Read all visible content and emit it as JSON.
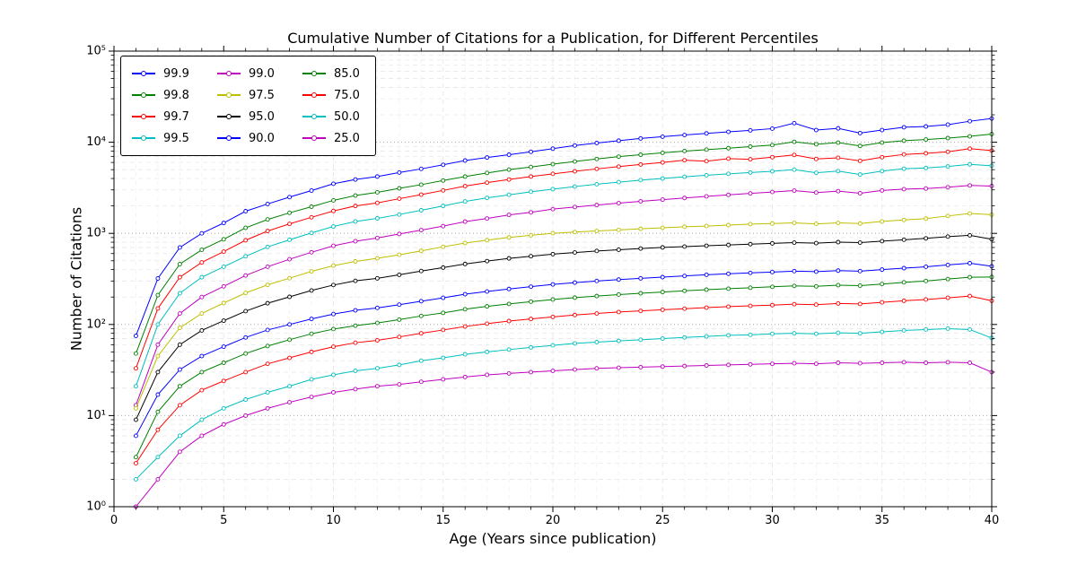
{
  "figure": {
    "background": "#ffffff",
    "frame_color": "#000000",
    "grid_major_color": "#aaaaaa",
    "grid_minor_color": "#e8e8e8"
  },
  "chart_data": {
    "type": "line",
    "title": "Cumulative Number of Citations for a Publication, for Different Percentiles",
    "xlabel": "Age (Years since publication)",
    "ylabel": "Number of Citations",
    "xlim": [
      0,
      40
    ],
    "ylim": [
      1,
      100000
    ],
    "yscale": "log",
    "grid": "both",
    "legend_position": "upper left",
    "legend_columns": 3,
    "x_major_ticks": [
      0,
      5,
      10,
      15,
      20,
      25,
      30,
      35,
      40
    ],
    "y_ticks": [
      {
        "exp": 0,
        "label": "10⁰"
      },
      {
        "exp": 1,
        "label": "10¹"
      },
      {
        "exp": 2,
        "label": "10²"
      },
      {
        "exp": 3,
        "label": "10³"
      },
      {
        "exp": 4,
        "label": "10⁴"
      },
      {
        "exp": 5,
        "label": "10⁵"
      }
    ],
    "x": [
      1,
      2,
      3,
      4,
      5,
      6,
      7,
      8,
      9,
      10,
      11,
      12,
      13,
      14,
      15,
      16,
      17,
      18,
      19,
      20,
      21,
      22,
      23,
      24,
      25,
      26,
      27,
      28,
      29,
      30,
      31,
      32,
      33,
      34,
      35,
      36,
      37,
      38,
      39,
      40
    ],
    "series": [
      {
        "name": "99.9",
        "color": "#0000ff",
        "values": [
          75,
          320,
          700,
          1000,
          1300,
          1750,
          2100,
          2500,
          2950,
          3500,
          3900,
          4200,
          4650,
          5100,
          5650,
          6300,
          6800,
          7300,
          7850,
          8500,
          9200,
          9800,
          10400,
          11000,
          11500,
          12000,
          12500,
          13000,
          13500,
          14100,
          16200,
          13600,
          14200,
          12600,
          13600,
          14600,
          14900,
          15600,
          17000,
          18200
        ]
      },
      {
        "name": "99.8",
        "color": "#008000",
        "values": [
          48,
          210,
          460,
          660,
          860,
          1150,
          1420,
          1680,
          1960,
          2300,
          2600,
          2820,
          3120,
          3420,
          3800,
          4200,
          4600,
          5000,
          5350,
          5750,
          6150,
          6550,
          6950,
          7300,
          7650,
          8000,
          8300,
          8600,
          8950,
          9300,
          10100,
          9500,
          9900,
          9100,
          9900,
          10400,
          10700,
          11100,
          11600,
          12300
        ]
      },
      {
        "name": "99.7",
        "color": "#ff0000",
        "values": [
          33,
          150,
          330,
          480,
          630,
          840,
          1060,
          1270,
          1500,
          1760,
          2000,
          2160,
          2400,
          2660,
          2960,
          3300,
          3600,
          3900,
          4200,
          4500,
          4800,
          5100,
          5400,
          5700,
          6000,
          6350,
          6200,
          6600,
          6500,
          6850,
          7250,
          6550,
          6750,
          6250,
          6850,
          7350,
          7550,
          7850,
          8500,
          8100
        ]
      },
      {
        "name": "99.5",
        "color": "#00bfbf",
        "values": [
          21,
          100,
          220,
          330,
          430,
          560,
          710,
          850,
          1010,
          1190,
          1350,
          1460,
          1610,
          1790,
          2000,
          2240,
          2450,
          2650,
          2860,
          3060,
          3260,
          3460,
          3650,
          3840,
          4000,
          4180,
          4340,
          4500,
          4650,
          4800,
          5000,
          4620,
          4820,
          4420,
          4820,
          5120,
          5220,
          5420,
          5720,
          5520
        ]
      },
      {
        "name": "99.0",
        "color": "#bf00bf",
        "values": [
          13,
          60,
          132,
          200,
          262,
          345,
          430,
          520,
          620,
          730,
          820,
          890,
          985,
          1085,
          1200,
          1345,
          1455,
          1595,
          1700,
          1845,
          1945,
          2045,
          2145,
          2245,
          2345,
          2445,
          2545,
          2645,
          2745,
          2845,
          2945,
          2805,
          2905,
          2755,
          2955,
          3055,
          3105,
          3205,
          3355,
          3305
        ]
      },
      {
        "name": "97.5",
        "color": "#bfbf00",
        "values": [
          12,
          45,
          92,
          132,
          172,
          222,
          272,
          322,
          382,
          442,
          492,
          532,
          582,
          642,
          712,
          782,
          842,
          902,
          952,
          1002,
          1032,
          1062,
          1092,
          1122,
          1152,
          1182,
          1202,
          1232,
          1262,
          1282,
          1302,
          1272,
          1302,
          1282,
          1352,
          1402,
          1452,
          1552,
          1652,
          1602
        ]
      },
      {
        "name": "95.0",
        "color": "#000000",
        "values": [
          9,
          30,
          60,
          86,
          110,
          140,
          171,
          201,
          236,
          271,
          301,
          321,
          351,
          386,
          421,
          461,
          496,
          531,
          561,
          591,
          616,
          641,
          661,
          681,
          701,
          716,
          731,
          746,
          761,
          776,
          791,
          781,
          801,
          791,
          821,
          851,
          881,
          921,
          951,
          861
        ]
      },
      {
        "name": "90.0",
        "color": "#0000ff",
        "values": [
          6,
          17,
          32,
          45,
          57,
          72,
          87,
          100,
          115,
          130,
          143,
          152,
          165,
          180,
          196,
          215,
          230,
          245,
          260,
          275,
          288,
          300,
          311,
          321,
          331,
          341,
          351,
          360,
          368,
          376,
          385,
          380,
          390,
          385,
          400,
          415,
          430,
          450,
          470,
          435
        ]
      },
      {
        "name": "85.0",
        "color": "#008000",
        "values": [
          3.5,
          11,
          21,
          30,
          38,
          48,
          58,
          68,
          79,
          89,
          97,
          104,
          113,
          124,
          134,
          147,
          158,
          168,
          178,
          188,
          197,
          205,
          213,
          220,
          227,
          234,
          241,
          247,
          253,
          259,
          265,
          262,
          270,
          267,
          278,
          290,
          300,
          315,
          330,
          332
        ]
      },
      {
        "name": "75.0",
        "color": "#ff0000",
        "values": [
          3,
          7,
          13,
          19,
          24,
          30,
          37,
          43,
          50,
          57,
          63,
          67,
          73,
          80,
          87,
          95,
          102,
          109,
          115,
          121,
          127,
          132,
          137,
          141,
          145,
          149,
          153,
          157,
          160,
          163,
          167,
          165,
          170,
          168,
          175,
          182,
          188,
          196,
          205,
          182
        ]
      },
      {
        "name": "50.0",
        "color": "#00bfbf",
        "values": [
          2,
          3.5,
          6,
          9,
          12,
          15,
          18,
          21,
          25,
          28,
          31,
          33,
          36,
          40,
          43,
          47,
          50,
          53,
          56,
          59,
          62,
          64,
          66,
          68,
          70,
          72,
          74,
          76,
          77,
          79,
          80,
          79,
          81,
          80,
          83,
          86,
          88,
          90,
          88,
          71
        ]
      },
      {
        "name": "25.0",
        "color": "#bf00bf",
        "values": [
          1,
          2,
          4,
          6,
          8,
          10,
          12,
          14,
          16,
          18,
          19.5,
          21,
          22,
          23.5,
          25,
          26.5,
          28,
          29,
          30,
          31,
          32,
          33,
          33.5,
          34,
          34.5,
          35,
          35.5,
          36,
          36.5,
          37,
          37.5,
          37,
          38,
          37.5,
          38,
          38.5,
          38,
          38.5,
          38,
          30
        ]
      }
    ]
  }
}
